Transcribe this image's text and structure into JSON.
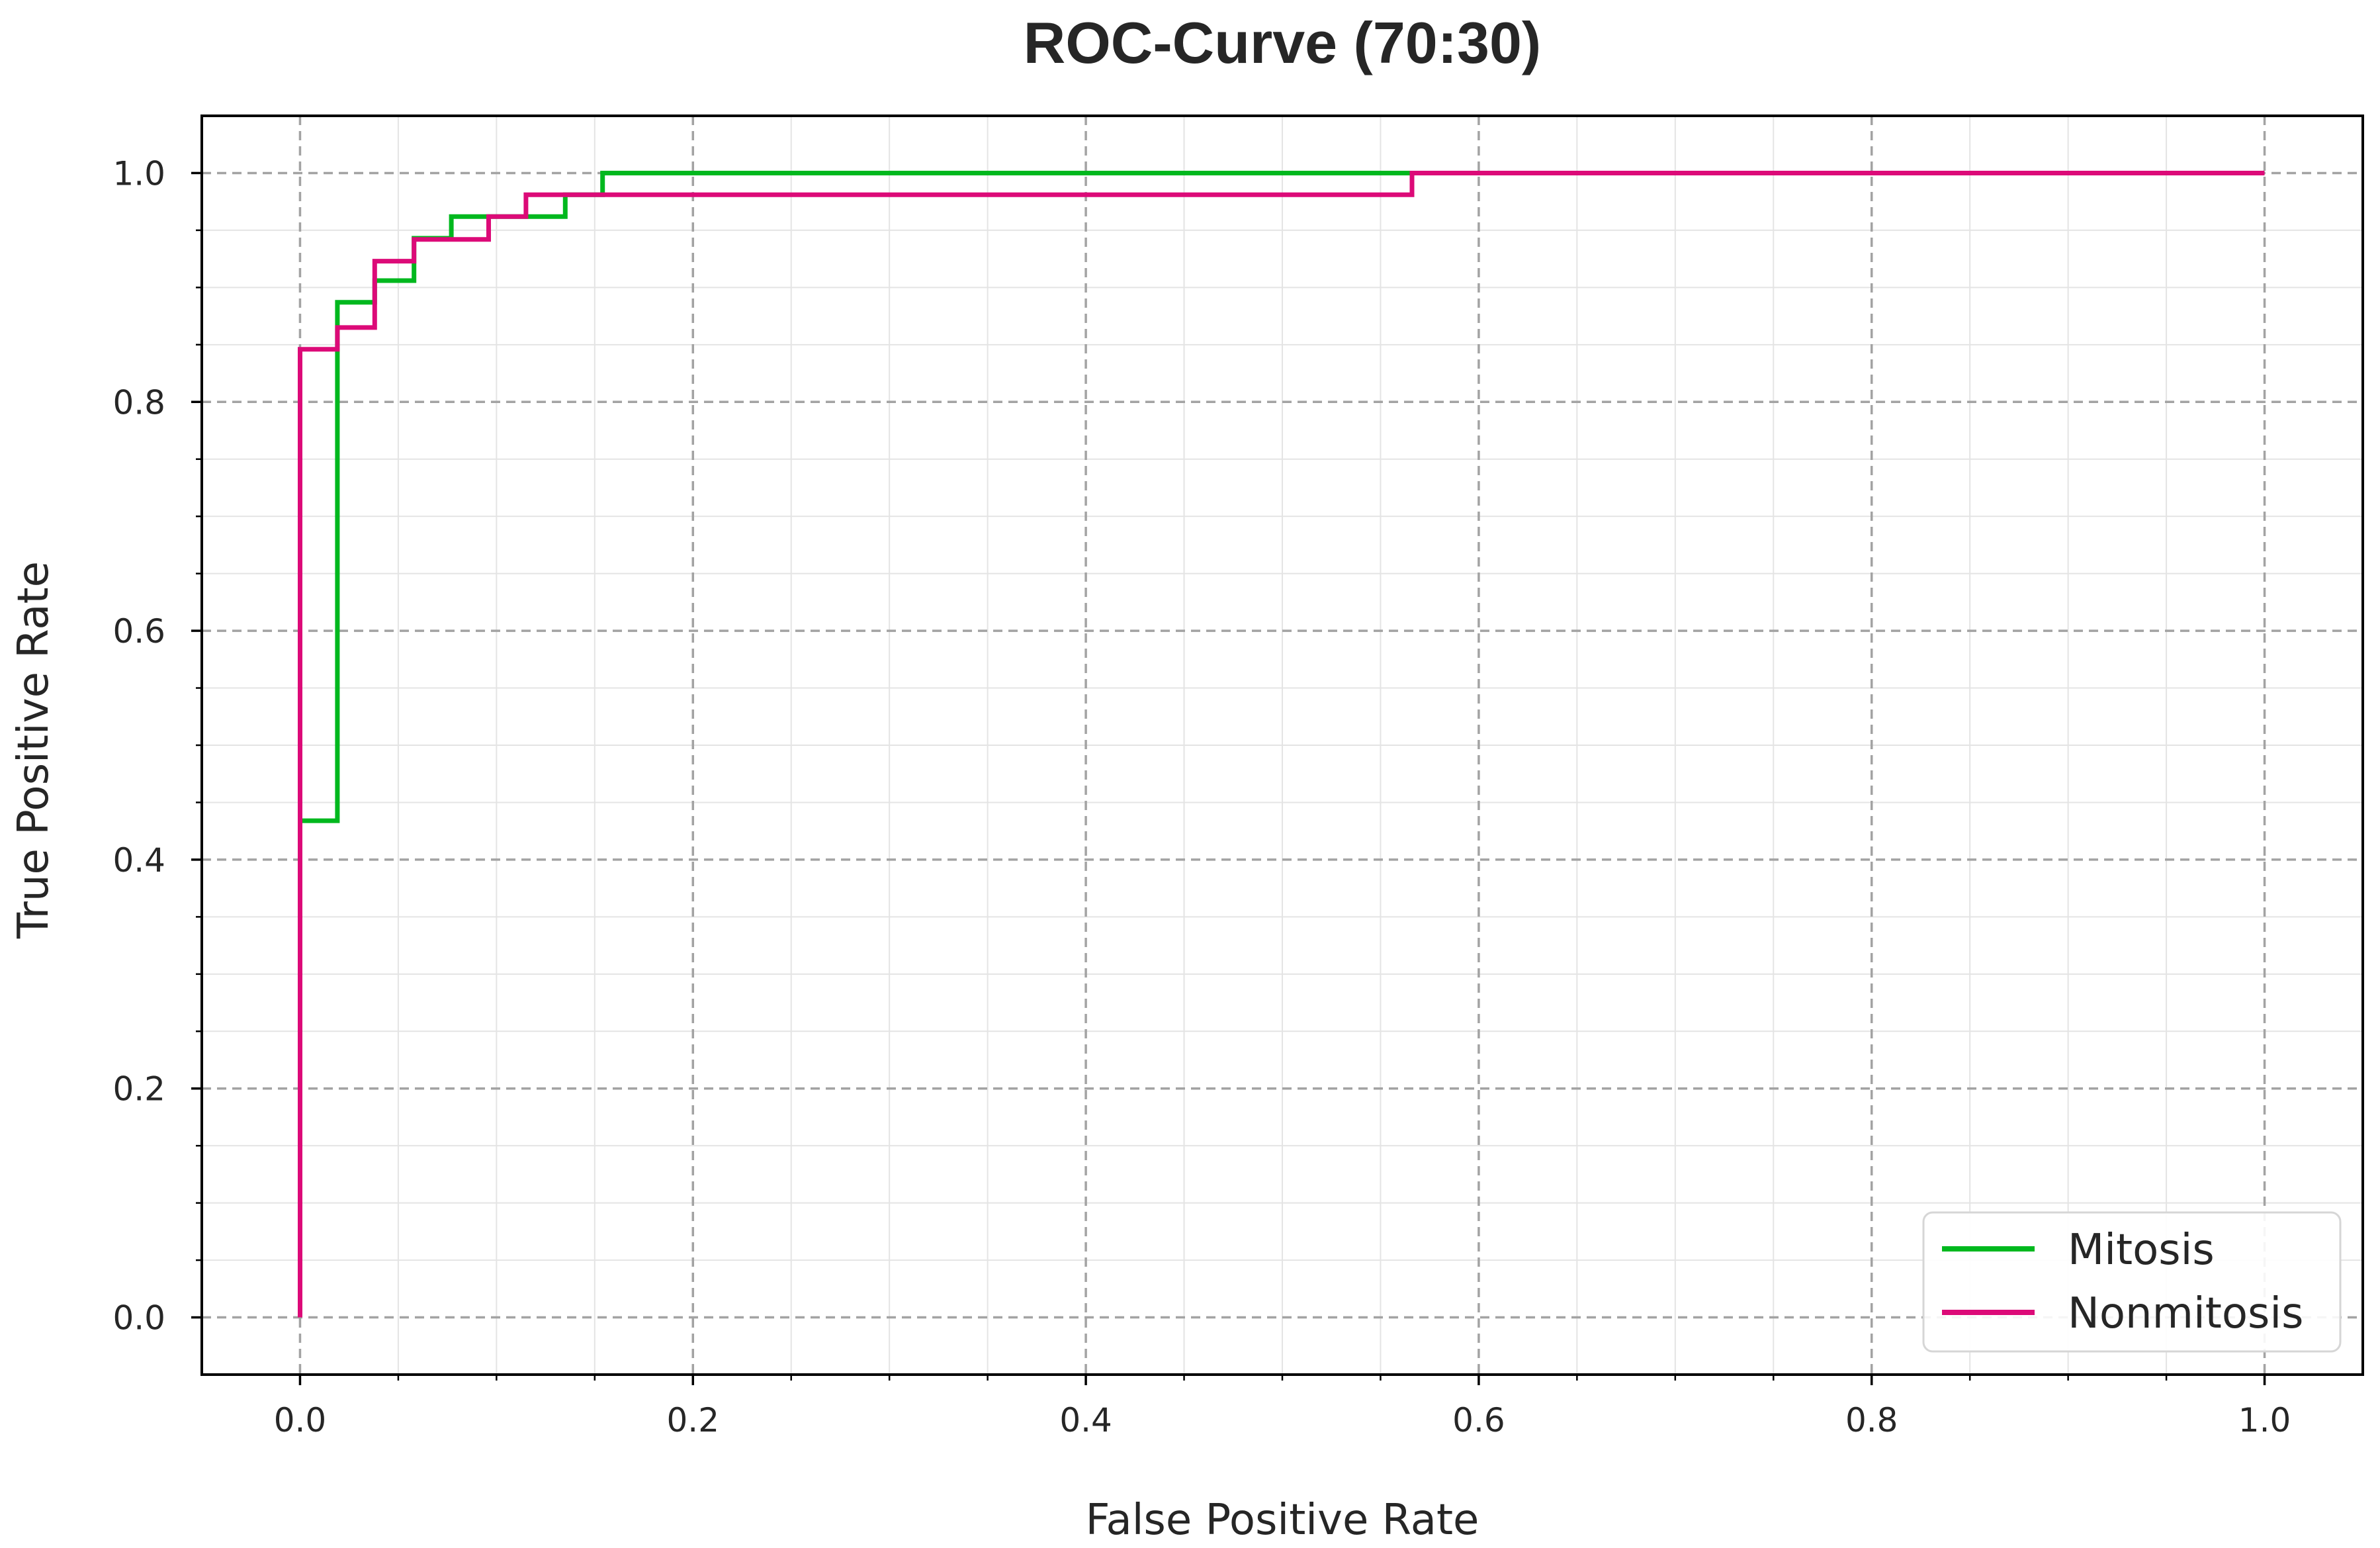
{
  "chart_data": {
    "type": "line",
    "title": "ROC-Curve (70:30)",
    "xlabel": "False Positive Rate",
    "ylabel": "True Positive Rate",
    "xlim": [
      -0.05,
      1.05
    ],
    "ylim": [
      -0.05,
      1.05
    ],
    "grid": true,
    "legend_position": "lower-right",
    "x_ticks": [
      0.0,
      0.2,
      0.4,
      0.6,
      0.8,
      1.0
    ],
    "y_ticks": [
      0.0,
      0.2,
      0.4,
      0.6,
      0.8,
      1.0
    ],
    "x_tick_labels": [
      "0.0",
      "0.2",
      "0.4",
      "0.6",
      "0.8",
      "1.0"
    ],
    "y_tick_labels": [
      "0.0",
      "0.2",
      "0.4",
      "0.6",
      "0.8",
      "1.0"
    ],
    "series": [
      {
        "name": "Mitosis",
        "color": "#00b81e",
        "x": [
          0.0,
          0.0,
          0.019,
          0.019,
          0.038,
          0.038,
          0.058,
          0.058,
          0.077,
          0.077,
          0.135,
          0.135,
          0.154,
          0.154,
          1.0
        ],
        "y": [
          0.0,
          0.434,
          0.434,
          0.887,
          0.887,
          0.906,
          0.906,
          0.943,
          0.943,
          0.962,
          0.962,
          0.981,
          0.981,
          1.0,
          1.0
        ]
      },
      {
        "name": "Nonmitosis",
        "color": "#dc0a78",
        "x": [
          0.0,
          0.0,
          0.019,
          0.019,
          0.038,
          0.038,
          0.058,
          0.058,
          0.096,
          0.096,
          0.115,
          0.115,
          0.566,
          0.566,
          1.0
        ],
        "y": [
          0.0,
          0.846,
          0.846,
          0.865,
          0.865,
          0.923,
          0.923,
          0.942,
          0.942,
          0.962,
          0.962,
          0.981,
          0.981,
          1.0,
          1.0
        ]
      }
    ]
  }
}
